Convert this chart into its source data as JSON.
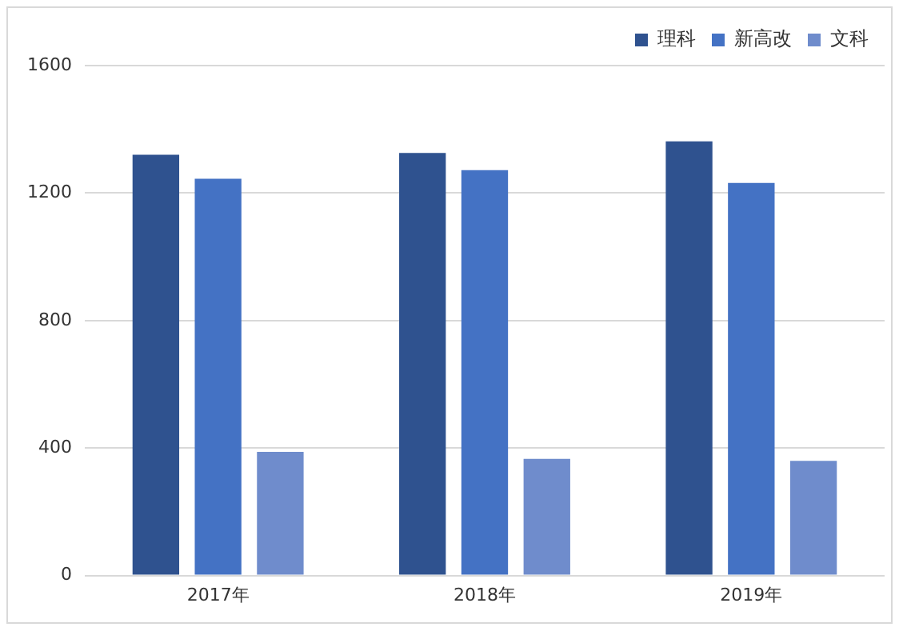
{
  "chart_data": {
    "type": "bar",
    "categories": [
      "2017年",
      "2018年",
      "2019年"
    ],
    "series": [
      {
        "name": "理科",
        "color": "#2f528f",
        "values": [
          1320,
          1326,
          1362
        ]
      },
      {
        "name": "新高改",
        "color": "#4472c4",
        "values": [
          1245,
          1272,
          1232
        ]
      },
      {
        "name": "文科",
        "color": "#6f8ccc",
        "values": [
          388,
          366,
          360
        ]
      }
    ],
    "ylim": [
      0,
      1600
    ],
    "yticks": [
      0,
      400,
      800,
      1200,
      1600
    ],
    "grid": "y",
    "legend": "top right"
  }
}
